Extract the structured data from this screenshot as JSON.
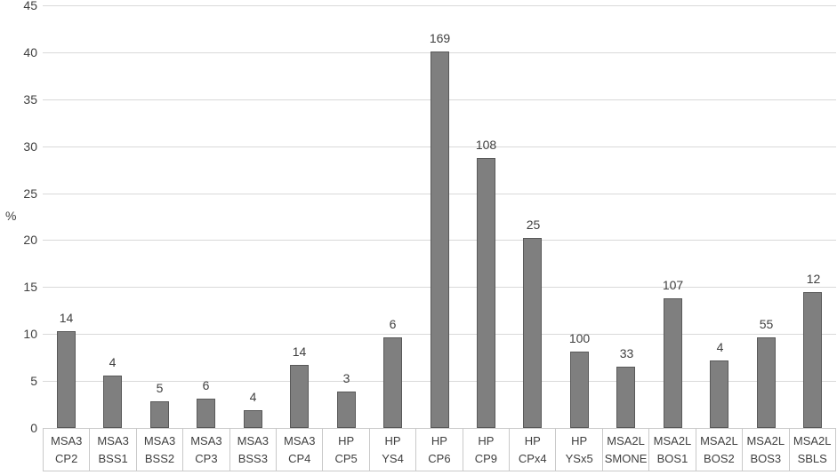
{
  "chart_data": {
    "type": "bar",
    "title": "",
    "xlabel": "",
    "ylabel": "%",
    "ylim": [
      0,
      45
    ],
    "yticks": [
      0,
      5,
      10,
      15,
      20,
      25,
      30,
      35,
      40,
      45
    ],
    "grid": true,
    "legend_position": "none",
    "categories": [
      "CP2",
      "BSS1",
      "BSS2",
      "CP3",
      "BSS3",
      "CP4",
      "CP5",
      "YS4",
      "CP6",
      "CP9",
      "CPx4",
      "YSx5",
      "SMONE",
      "BOS1",
      "BOS2",
      "BOS3",
      "SBLS"
    ],
    "category_groups": [
      "MSA3",
      "MSA3",
      "MSA3",
      "MSA3",
      "MSA3",
      "MSA3",
      "HP",
      "HP",
      "HP",
      "HP",
      "HP",
      "HP",
      "MSA2L",
      "MSA2L",
      "MSA2L",
      "MSA2L",
      "MSA2L"
    ],
    "values_percent": [
      10.3,
      5.6,
      2.8,
      3.1,
      1.9,
      6.7,
      3.9,
      9.6,
      40.1,
      28.7,
      20.2,
      8.1,
      6.5,
      13.8,
      7.2,
      9.6,
      14.5
    ],
    "bar_labels": [
      "14",
      "4",
      "5",
      "6",
      "4",
      "14",
      "3",
      "6",
      "169",
      "108",
      "25",
      "100",
      "33",
      "107",
      "4",
      "55",
      "12"
    ],
    "colors": {
      "bar_fill": "#7f7f7f",
      "bar_border": "#595959",
      "gridline": "#d9d9d9",
      "axis_table_border": "#c9c9c9",
      "text": "#3f3f3f"
    }
  }
}
